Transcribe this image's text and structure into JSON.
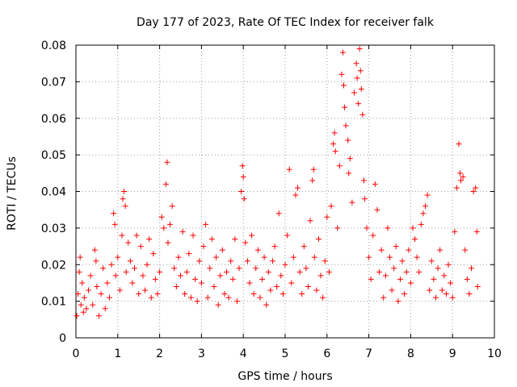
{
  "chart_data": {
    "type": "scatter",
    "title": "Day 177 of 2023, Rate Of TEC Index for receiver falk",
    "xlabel": "GPS time / hours",
    "ylabel": "ROTI / TECUs",
    "xlim": [
      0,
      10
    ],
    "ylim": [
      0,
      0.08
    ],
    "grid": true,
    "marker": "+",
    "marker_color": "#ff0000",
    "x_ticks": [
      0,
      1,
      2,
      3,
      4,
      5,
      6,
      7,
      8,
      9,
      10
    ],
    "x_tick_labels": [
      "0",
      "1",
      "2",
      "3",
      "4",
      "5",
      "6",
      "7",
      "8",
      "9",
      "10"
    ],
    "y_ticks": [
      0,
      0.01,
      0.02,
      0.03,
      0.04,
      0.05,
      0.06,
      0.07,
      0.08
    ],
    "y_tick_labels": [
      "0",
      "0.01",
      "0.02",
      "0.03",
      "0.04",
      "0.05",
      "0.06",
      "0.07",
      "0.08"
    ],
    "series": [
      {
        "name": "ROTI",
        "note": "dense baseline 0.004-0.022 across 0-9.6 h with excursions; representative points below",
        "points": [
          [
            0.02,
            0.006
          ],
          [
            0.05,
            0.012
          ],
          [
            0.08,
            0.018
          ],
          [
            0.1,
            0.022
          ],
          [
            0.12,
            0.009
          ],
          [
            0.15,
            0.015
          ],
          [
            0.18,
            0.007
          ],
          [
            0.2,
            0.011
          ],
          [
            0.25,
            0.008
          ],
          [
            0.3,
            0.013
          ],
          [
            0.35,
            0.017
          ],
          [
            0.4,
            0.009
          ],
          [
            0.45,
            0.024
          ],
          [
            0.48,
            0.021
          ],
          [
            0.5,
            0.014
          ],
          [
            0.55,
            0.006
          ],
          [
            0.6,
            0.012
          ],
          [
            0.65,
            0.019
          ],
          [
            0.7,
            0.008
          ],
          [
            0.75,
            0.015
          ],
          [
            0.8,
            0.011
          ],
          [
            0.85,
            0.02
          ],
          [
            0.9,
            0.034
          ],
          [
            0.93,
            0.031
          ],
          [
            0.95,
            0.017
          ],
          [
            1.0,
            0.022
          ],
          [
            1.05,
            0.013
          ],
          [
            1.1,
            0.028
          ],
          [
            1.12,
            0.038
          ],
          [
            1.15,
            0.04
          ],
          [
            1.18,
            0.036
          ],
          [
            1.2,
            0.018
          ],
          [
            1.25,
            0.026
          ],
          [
            1.3,
            0.021
          ],
          [
            1.35,
            0.015
          ],
          [
            1.4,
            0.019
          ],
          [
            1.45,
            0.028
          ],
          [
            1.5,
            0.012
          ],
          [
            1.55,
            0.025
          ],
          [
            1.6,
            0.017
          ],
          [
            1.65,
            0.013
          ],
          [
            1.7,
            0.02
          ],
          [
            1.75,
            0.027
          ],
          [
            1.8,
            0.011
          ],
          [
            1.85,
            0.023
          ],
          [
            1.9,
            0.016
          ],
          [
            1.95,
            0.012
          ],
          [
            2.0,
            0.018
          ],
          [
            2.05,
            0.033
          ],
          [
            2.1,
            0.03
          ],
          [
            2.15,
            0.042
          ],
          [
            2.18,
            0.048
          ],
          [
            2.2,
            0.026
          ],
          [
            2.25,
            0.031
          ],
          [
            2.3,
            0.036
          ],
          [
            2.35,
            0.019
          ],
          [
            2.4,
            0.014
          ],
          [
            2.45,
            0.022
          ],
          [
            2.5,
            0.017
          ],
          [
            2.55,
            0.029
          ],
          [
            2.6,
            0.012
          ],
          [
            2.65,
            0.018
          ],
          [
            2.7,
            0.023
          ],
          [
            2.75,
            0.011
          ],
          [
            2.8,
            0.028
          ],
          [
            2.85,
            0.016
          ],
          [
            2.9,
            0.01
          ],
          [
            2.95,
            0.021
          ],
          [
            3.0,
            0.015
          ],
          [
            3.05,
            0.025
          ],
          [
            3.1,
            0.031
          ],
          [
            3.15,
            0.011
          ],
          [
            3.2,
            0.019
          ],
          [
            3.25,
            0.027
          ],
          [
            3.3,
            0.014
          ],
          [
            3.35,
            0.022
          ],
          [
            3.4,
            0.009
          ],
          [
            3.45,
            0.017
          ],
          [
            3.5,
            0.024
          ],
          [
            3.55,
            0.012
          ],
          [
            3.6,
            0.018
          ],
          [
            3.65,
            0.011
          ],
          [
            3.7,
            0.021
          ],
          [
            3.75,
            0.016
          ],
          [
            3.8,
            0.027
          ],
          [
            3.85,
            0.01
          ],
          [
            3.9,
            0.019
          ],
          [
            3.95,
            0.04
          ],
          [
            3.98,
            0.047
          ],
          [
            4.0,
            0.044
          ],
          [
            4.02,
            0.038
          ],
          [
            4.05,
            0.026
          ],
          [
            4.1,
            0.021
          ],
          [
            4.15,
            0.015
          ],
          [
            4.2,
            0.028
          ],
          [
            4.25,
            0.012
          ],
          [
            4.3,
            0.019
          ],
          [
            4.35,
            0.024
          ],
          [
            4.4,
            0.011
          ],
          [
            4.45,
            0.016
          ],
          [
            4.5,
            0.022
          ],
          [
            4.55,
            0.009
          ],
          [
            4.6,
            0.018
          ],
          [
            4.65,
            0.013
          ],
          [
            4.7,
            0.021
          ],
          [
            4.75,
            0.025
          ],
          [
            4.8,
            0.014
          ],
          [
            4.85,
            0.034
          ],
          [
            4.9,
            0.017
          ],
          [
            4.95,
            0.012
          ],
          [
            5.0,
            0.02
          ],
          [
            5.05,
            0.028
          ],
          [
            5.1,
            0.046
          ],
          [
            5.15,
            0.015
          ],
          [
            5.2,
            0.022
          ],
          [
            5.25,
            0.039
          ],
          [
            5.3,
            0.041
          ],
          [
            5.35,
            0.018
          ],
          [
            5.4,
            0.012
          ],
          [
            5.45,
            0.025
          ],
          [
            5.5,
            0.019
          ],
          [
            5.55,
            0.014
          ],
          [
            5.6,
            0.032
          ],
          [
            5.65,
            0.043
          ],
          [
            5.68,
            0.046
          ],
          [
            5.7,
            0.022
          ],
          [
            5.75,
            0.013
          ],
          [
            5.8,
            0.027
          ],
          [
            5.85,
            0.017
          ],
          [
            5.9,
            0.011
          ],
          [
            5.95,
            0.021
          ],
          [
            6.0,
            0.033
          ],
          [
            6.05,
            0.018
          ],
          [
            6.1,
            0.036
          ],
          [
            6.15,
            0.053
          ],
          [
            6.18,
            0.056
          ],
          [
            6.2,
            0.051
          ],
          [
            6.25,
            0.03
          ],
          [
            6.3,
            0.047
          ],
          [
            6.35,
            0.072
          ],
          [
            6.38,
            0.078
          ],
          [
            6.4,
            0.069
          ],
          [
            6.42,
            0.063
          ],
          [
            6.45,
            0.058
          ],
          [
            6.5,
            0.054
          ],
          [
            6.52,
            0.045
          ],
          [
            6.55,
            0.049
          ],
          [
            6.6,
            0.037
          ],
          [
            6.65,
            0.067
          ],
          [
            6.7,
            0.075
          ],
          [
            6.72,
            0.071
          ],
          [
            6.75,
            0.064
          ],
          [
            6.78,
            0.079
          ],
          [
            6.8,
            0.073
          ],
          [
            6.82,
            0.068
          ],
          [
            6.85,
            0.061
          ],
          [
            6.88,
            0.043
          ],
          [
            6.9,
            0.038
          ],
          [
            6.95,
            0.03
          ],
          [
            7.0,
            0.022
          ],
          [
            7.05,
            0.016
          ],
          [
            7.1,
            0.028
          ],
          [
            7.15,
            0.042
          ],
          [
            7.2,
            0.035
          ],
          [
            7.25,
            0.018
          ],
          [
            7.3,
            0.024
          ],
          [
            7.35,
            0.011
          ],
          [
            7.4,
            0.017
          ],
          [
            7.45,
            0.03
          ],
          [
            7.5,
            0.022
          ],
          [
            7.55,
            0.013
          ],
          [
            7.6,
            0.019
          ],
          [
            7.65,
            0.025
          ],
          [
            7.7,
            0.01
          ],
          [
            7.75,
            0.016
          ],
          [
            7.8,
            0.021
          ],
          [
            7.85,
            0.012
          ],
          [
            7.9,
            0.018
          ],
          [
            7.95,
            0.024
          ],
          [
            8.0,
            0.015
          ],
          [
            8.05,
            0.03
          ],
          [
            8.1,
            0.027
          ],
          [
            8.15,
            0.022
          ],
          [
            8.2,
            0.018
          ],
          [
            8.25,
            0.031
          ],
          [
            8.3,
            0.034
          ],
          [
            8.35,
            0.036
          ],
          [
            8.4,
            0.039
          ],
          [
            8.45,
            0.013
          ],
          [
            8.5,
            0.021
          ],
          [
            8.55,
            0.016
          ],
          [
            8.6,
            0.011
          ],
          [
            8.65,
            0.019
          ],
          [
            8.7,
            0.024
          ],
          [
            8.75,
            0.013
          ],
          [
            8.8,
            0.017
          ],
          [
            8.85,
            0.012
          ],
          [
            8.9,
            0.02
          ],
          [
            8.95,
            0.015
          ],
          [
            9.0,
            0.011
          ],
          [
            9.05,
            0.029
          ],
          [
            9.1,
            0.041
          ],
          [
            9.15,
            0.053
          ],
          [
            9.18,
            0.045
          ],
          [
            9.2,
            0.043
          ],
          [
            9.25,
            0.044
          ],
          [
            9.3,
            0.024
          ],
          [
            9.35,
            0.016
          ],
          [
            9.4,
            0.012
          ],
          [
            9.45,
            0.019
          ],
          [
            9.5,
            0.04
          ],
          [
            9.55,
            0.041
          ],
          [
            9.58,
            0.029
          ],
          [
            9.6,
            0.014
          ]
        ]
      }
    ]
  }
}
